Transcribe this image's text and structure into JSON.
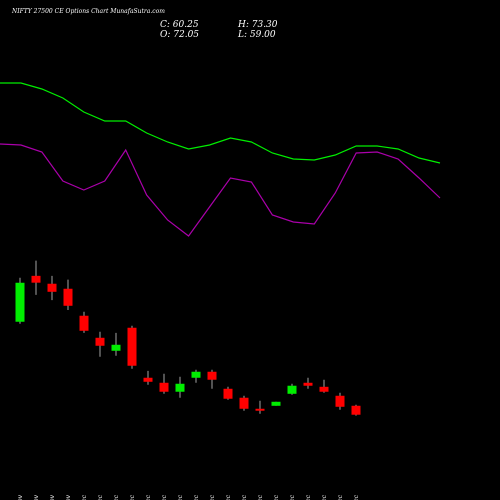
{
  "chart_data": {
    "type": "candlestick",
    "title": "NIFTY 27500 CE Options Chart MunafaSutra.com",
    "ohlc_texts": [
      "C: 60.25",
      "H: 73.30",
      "O: 72.05",
      "L: 59.00"
    ],
    "categories": [
      "26 Nov",
      "27 Nov",
      "28 Nov",
      "29 Nov",
      "02 Dec",
      "03 Dec",
      "04 Dec",
      "05 Dec",
      "06 Dec",
      "09 Dec",
      "10 Dec",
      "11 Dec",
      "12 Dec",
      "13 Dec",
      "16 Dec",
      "17 Dec",
      "18 Dec",
      "19 Dec",
      "20 Dec",
      "23 Dec",
      "24 Dec",
      "26 Dec"
    ],
    "open": [
      182.6,
      243,
      232.6,
      226,
      190.5,
      161.5,
      144.4,
      174.7,
      108.9,
      102.3,
      90.5,
      108.9,
      116.8,
      94.4,
      82.6,
      68.1,
      72,
      87.8,
      102.3,
      97,
      85.2,
      72.05
    ],
    "high": [
      240.5,
      263,
      243,
      238,
      195.8,
      169.5,
      168,
      177.3,
      118,
      114.2,
      110.2,
      119.4,
      119.4,
      97,
      85.2,
      78.6,
      77.3,
      101,
      108.9,
      106.3,
      89.2,
      73.3
    ],
    "low": [
      180,
      218,
      211,
      198,
      168,
      136.5,
      137.8,
      120.7,
      99.7,
      87.8,
      82.6,
      102.3,
      94.4,
      80,
      65.5,
      61.5,
      72,
      86.5,
      94.4,
      89.2,
      66.8,
      59
    ],
    "close": [
      233.9,
      234,
      222,
      203.6,
      170.7,
      151,
      152.3,
      124.7,
      103.6,
      90.5,
      101,
      116.8,
      106.3,
      81.3,
      68.1,
      65.5,
      77.3,
      98.4,
      98.4,
      90.5,
      70.7,
      60.25
    ],
    "up_color": "#00ee00",
    "down_color": "#ff0000",
    "ylim": [
      27,
      277
    ],
    "lines": [
      {
        "color": "#00ee00",
        "values": [
          217,
          217,
          211,
          202,
          188,
          179,
          179,
          167,
          158,
          151,
          155,
          162,
          158,
          147,
          141,
          140,
          145,
          154,
          154,
          151,
          142,
          137
        ]
      },
      {
        "color": "#aa00aa",
        "values": [
          156,
          155,
          148,
          119,
          110,
          119,
          150,
          105,
          80,
          64,
          93,
          122,
          118,
          85,
          78,
          76,
          107,
          147,
          148,
          141,
          122,
          102
        ]
      }
    ],
    "line_ylim": [
      50,
      240
    ]
  }
}
